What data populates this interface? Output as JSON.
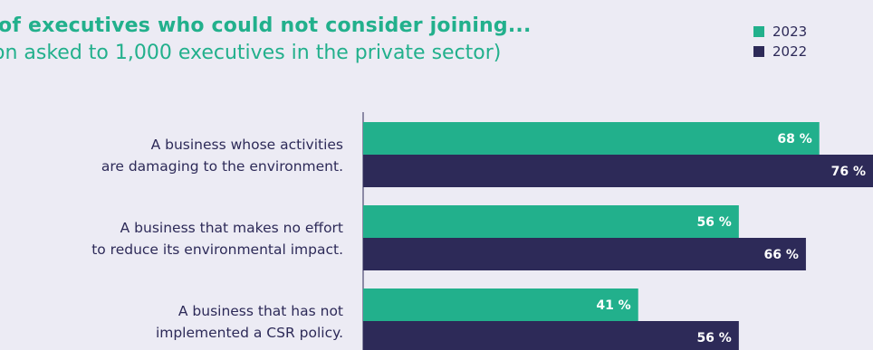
{
  "chart_data": {
    "type": "bar",
    "orientation": "horizontal",
    "title": "of executives who could not consider joining...",
    "subtitle": "on asked to 1,000 executives in the private sector)",
    "categories": [
      [
        "A business whose activities",
        "are damaging to the environment."
      ],
      [
        "A business that makes no effort",
        "to reduce its environmental impact."
      ],
      [
        "A business that has not",
        "implemented a CSR policy."
      ]
    ],
    "series": [
      {
        "name": "2023",
        "color": "#22b08c",
        "values": [
          68,
          56,
          41
        ],
        "labels": [
          "68 %",
          "56 %",
          "41 %"
        ]
      },
      {
        "name": "2022",
        "color": "#2d2a58",
        "values": [
          76,
          66,
          56
        ],
        "labels": [
          "76 %",
          "66 %",
          "56 %"
        ]
      }
    ],
    "unit": "%",
    "xlim": [
      0,
      76
    ],
    "legend_position": "top-right",
    "grid": false
  }
}
